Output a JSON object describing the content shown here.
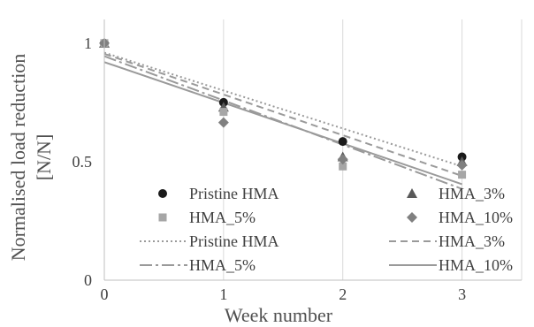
{
  "chart_data": {
    "type": "scatter",
    "xlabel": "Week number",
    "ylabel_lines": [
      "Normalised load reduction",
      "[N/N]"
    ],
    "xlim": [
      0,
      3.5
    ],
    "ylim": [
      0,
      1.1
    ],
    "x_ticks": [
      0,
      1,
      2,
      3
    ],
    "y_ticks": [
      0,
      0.5,
      1
    ],
    "y_tick_labels": [
      "0",
      "0.5",
      "1"
    ],
    "grid": "vertical",
    "legend_placement": "lower-center",
    "series": [
      {
        "name": "Pristine HMA",
        "kind": "points",
        "marker": "circle",
        "color": "#1a1a1a",
        "x": [
          0,
          1,
          2,
          3
        ],
        "y": [
          1.0,
          0.75,
          0.585,
          0.52
        ]
      },
      {
        "name": "HMA_3%",
        "kind": "points",
        "marker": "triangle",
        "color": "#595959",
        "x": [
          0,
          1,
          2,
          3
        ],
        "y": [
          1.0,
          0.73,
          0.52,
          0.5
        ]
      },
      {
        "name": "HMA_5%",
        "kind": "points",
        "marker": "square",
        "color": "#a6a6a6",
        "x": [
          0,
          1,
          2,
          3
        ],
        "y": [
          1.0,
          0.71,
          0.48,
          0.445
        ]
      },
      {
        "name": "HMA_10%",
        "kind": "points",
        "marker": "diamond",
        "color": "#808080",
        "x": [
          0,
          1,
          2,
          3
        ],
        "y": [
          1.0,
          0.665,
          0.51,
          0.485
        ]
      },
      {
        "name": "Pristine HMA",
        "kind": "trend",
        "dash": "dotted",
        "color": "#9a9a9a",
        "x": [
          0,
          3
        ],
        "y": [
          0.96,
          0.48
        ]
      },
      {
        "name": "HMA_3%",
        "kind": "trend",
        "dash": "dashed",
        "color": "#9a9a9a",
        "x": [
          0,
          3
        ],
        "y": [
          0.955,
          0.44
        ]
      },
      {
        "name": "HMA_5%",
        "kind": "trend",
        "dash": "dashdot",
        "color": "#9a9a9a",
        "x": [
          0,
          3
        ],
        "y": [
          0.945,
          0.385
        ]
      },
      {
        "name": "HMA_10%",
        "kind": "trend",
        "dash": "solid",
        "color": "#9a9a9a",
        "x": [
          0,
          3
        ],
        "y": [
          0.92,
          0.405
        ]
      }
    ]
  }
}
